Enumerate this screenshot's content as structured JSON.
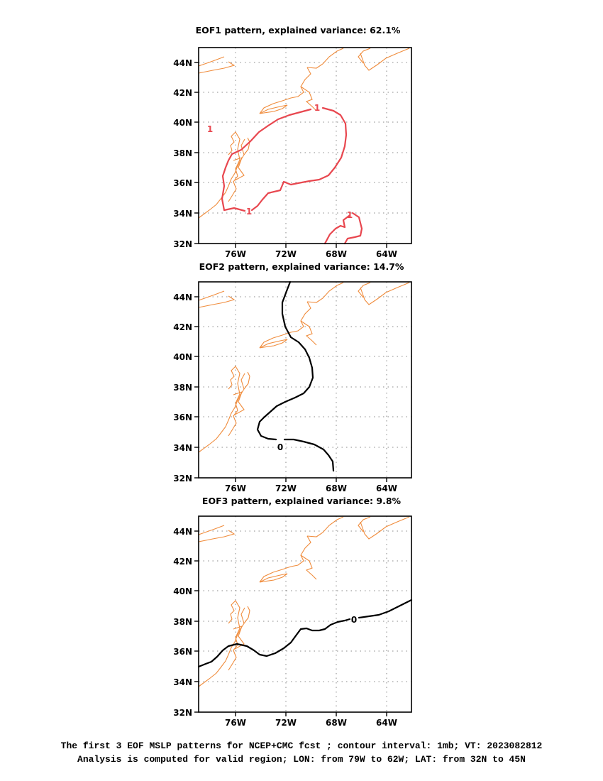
{
  "panels": [
    {
      "title": "EOF1 pattern, explained variance: 62.1%",
      "contour_color": "#e8474f",
      "contour_labels": [
        "1",
        "1",
        "1",
        "1"
      ]
    },
    {
      "title": "EOF2 pattern, explained variance: 14.7%",
      "contour_color": "#000000",
      "contour_labels": [
        "0"
      ]
    },
    {
      "title": "EOF3 pattern, explained variance: 9.8%",
      "contour_color": "#000000",
      "contour_labels": [
        "0"
      ]
    }
  ],
  "lat_ticks": [
    "44N",
    "42N",
    "40N",
    "38N",
    "36N",
    "34N",
    "32N"
  ],
  "lon_ticks": [
    "76W",
    "72W",
    "68W",
    "64W"
  ],
  "coastline_color": "#f08c3c",
  "caption": {
    "line1": "The first 3 EOF MSLP patterns for NCEP+CMC fcst ; contour interval: 1mb; VT: 2023082812",
    "line2": "Analysis is computed for valid region; LON: from 79W to 62W; LAT: from 32N to 45N"
  }
}
